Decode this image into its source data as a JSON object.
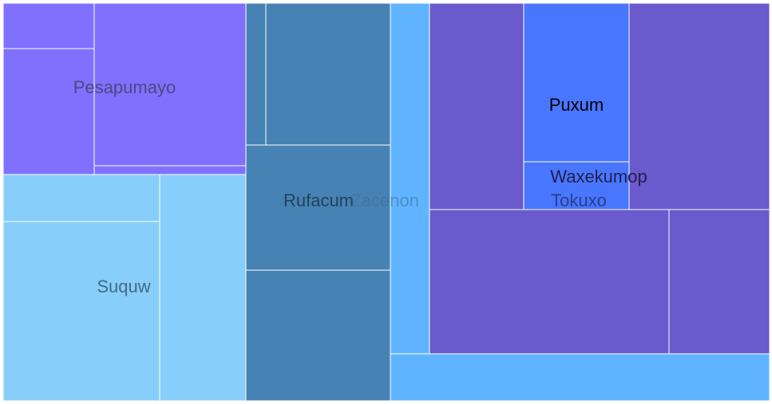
{
  "chart_data": {
    "type": "treemap",
    "groups": [
      {
        "name": "Pesapumayo",
        "color": "#8070ff",
        "label_color": "#4a4a80",
        "label_opacity": 1,
        "leaves": [
          {
            "value": 66
          },
          {
            "value": 131
          },
          {
            "value": 216
          },
          {
            "value": 19
          }
        ]
      },
      {
        "name": "Suquw",
        "color": "#87cefa",
        "label_color": "#3f6b87",
        "label_opacity": 1,
        "leaves": [
          {
            "value": 66
          },
          {
            "value": 244
          },
          {
            "value": 170
          }
        ]
      },
      {
        "name": "Rufacum",
        "color": "#4682b4",
        "label_color": "#23425a",
        "label_opacity": 1,
        "leaves": [
          {
            "value": 28
          },
          {
            "value": 174
          },
          {
            "value": 175
          },
          {
            "value": 185
          }
        ]
      },
      {
        "name": "Zacenon",
        "color": "#60b4ff",
        "label_color": "#3f6f9c",
        "label_opacity": 0.55,
        "leaves": [
          {
            "value": 58
          },
          {
            "value": 172
          }
        ]
      },
      {
        "name": "Waxekumop",
        "color": "#6a5acd",
        "label_color": "#241d4d",
        "label_opacity": 1,
        "leaves": [
          {
            "value": 148
          },
          {
            "value": 130
          },
          {
            "value": 225
          },
          {
            "value": 82
          }
        ]
      },
      {
        "name": "Puxum",
        "color": "#4876ff",
        "label_color": "#000000",
        "label_opacity": 1,
        "leaves": [
          {
            "value": 128
          }
        ]
      },
      {
        "name": "Tokuxo",
        "color": "#4876ff",
        "label_color": "#26408a",
        "label_opacity": 1,
        "leaves": [
          {
            "value": 39
          }
        ]
      }
    ]
  }
}
